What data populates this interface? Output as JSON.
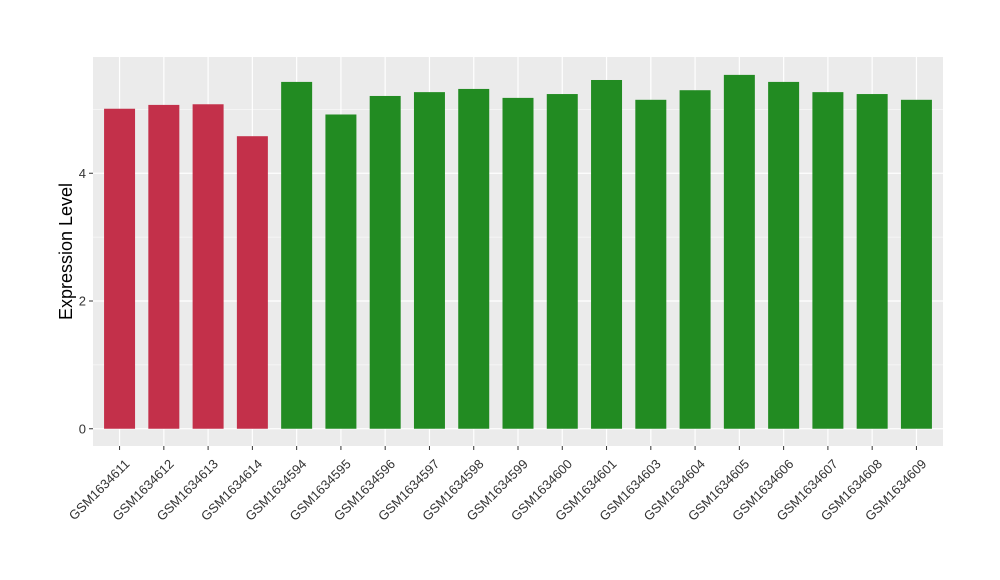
{
  "chart_data": {
    "type": "bar",
    "title": "",
    "xlabel": "",
    "ylabel": "Expression Level",
    "ylim": [
      -0.27,
      5.82
    ],
    "yticks": [
      0,
      2,
      4
    ],
    "grid": true,
    "legend": "none",
    "categories": [
      "GSM1634611",
      "GSM1634612",
      "GSM1634613",
      "GSM1634614",
      "GSM1634594",
      "GSM1634595",
      "GSM1634596",
      "GSM1634597",
      "GSM1634598",
      "GSM1634599",
      "GSM1634600",
      "GSM1634601",
      "GSM1634603",
      "GSM1634604",
      "GSM1634605",
      "GSM1634606",
      "GSM1634607",
      "GSM1634608",
      "GSM1634609"
    ],
    "values": [
      5.01,
      5.07,
      5.08,
      4.58,
      5.43,
      4.92,
      5.21,
      5.27,
      5.32,
      5.18,
      5.24,
      5.46,
      5.15,
      5.3,
      5.54,
      5.43,
      5.27,
      5.24,
      5.15
    ],
    "bar_colors": [
      "#C3304A",
      "#C3304A",
      "#C3304A",
      "#C3304A",
      "#228B22",
      "#228B22",
      "#228B22",
      "#228B22",
      "#228B22",
      "#228B22",
      "#228B22",
      "#228B22",
      "#228B22",
      "#228B22",
      "#228B22",
      "#228B22",
      "#228B22",
      "#228B22",
      "#228B22"
    ],
    "panel_background": "#EBEBEB",
    "grid_color": "#FFFFFF"
  }
}
